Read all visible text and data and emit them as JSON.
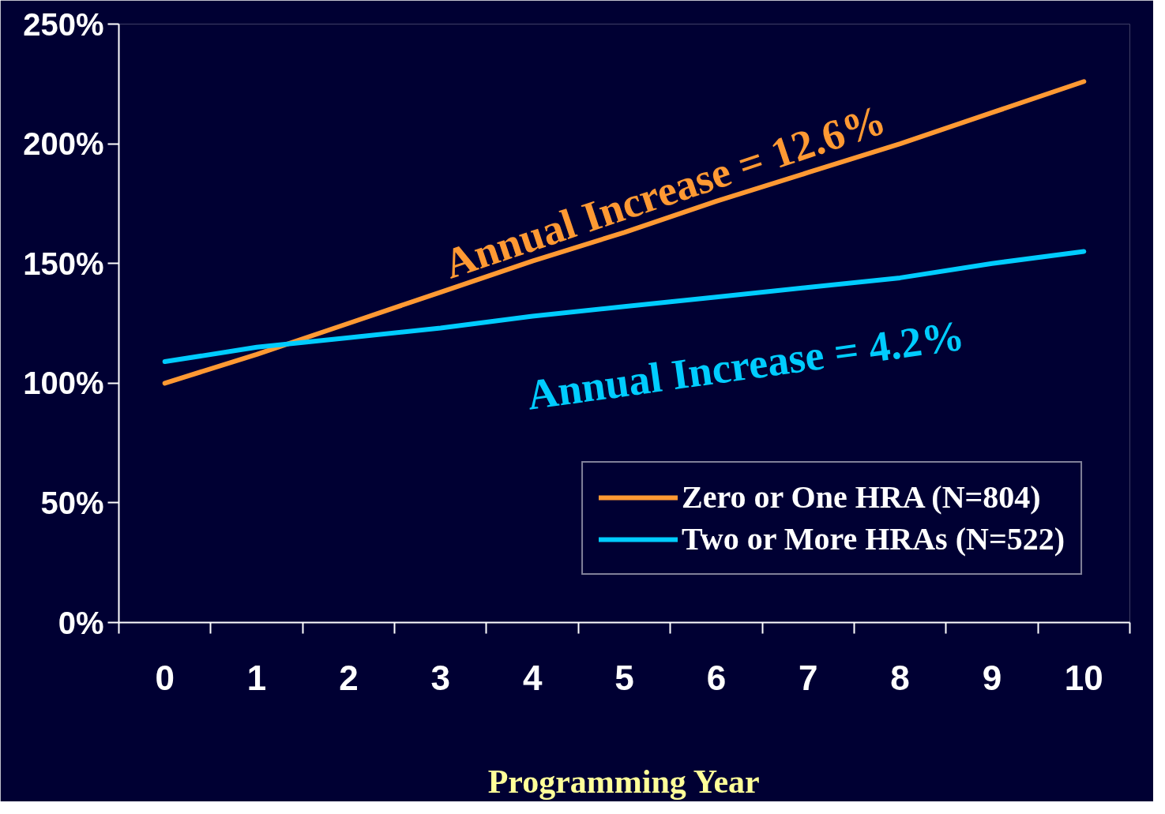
{
  "chart_data": {
    "type": "line",
    "categories": [
      "0",
      "1",
      "2",
      "3",
      "4",
      "5",
      "6",
      "7",
      "8",
      "9",
      "10"
    ],
    "xlabel": "Programming Year",
    "series": [
      {
        "name": "Zero or One HRA (N=804)",
        "color": "#ff9933",
        "values": [
          100,
          112,
          125,
          138,
          151,
          163,
          176,
          188,
          200,
          213,
          226
        ]
      },
      {
        "name": "Two or More HRAs (N=522)",
        "color": "#00ccff",
        "values": [
          109,
          115,
          119,
          123,
          128,
          132,
          136,
          140,
          144,
          150,
          155
        ]
      }
    ],
    "ylim": [
      0,
      250
    ],
    "yticks": [
      {
        "value": 0,
        "label": "0%"
      },
      {
        "value": 50,
        "label": "50%"
      },
      {
        "value": 100,
        "label": "100%"
      },
      {
        "value": 150,
        "label": "150%"
      },
      {
        "value": 200,
        "label": "200%"
      },
      {
        "value": 250,
        "label": "250%"
      }
    ],
    "annotations": [
      "Annual Increase = 12.6%",
      "Annual Increase = 4.2%"
    ],
    "grid": false,
    "legend": "bottom right",
    "marker": "none",
    "line_style": "solid"
  }
}
